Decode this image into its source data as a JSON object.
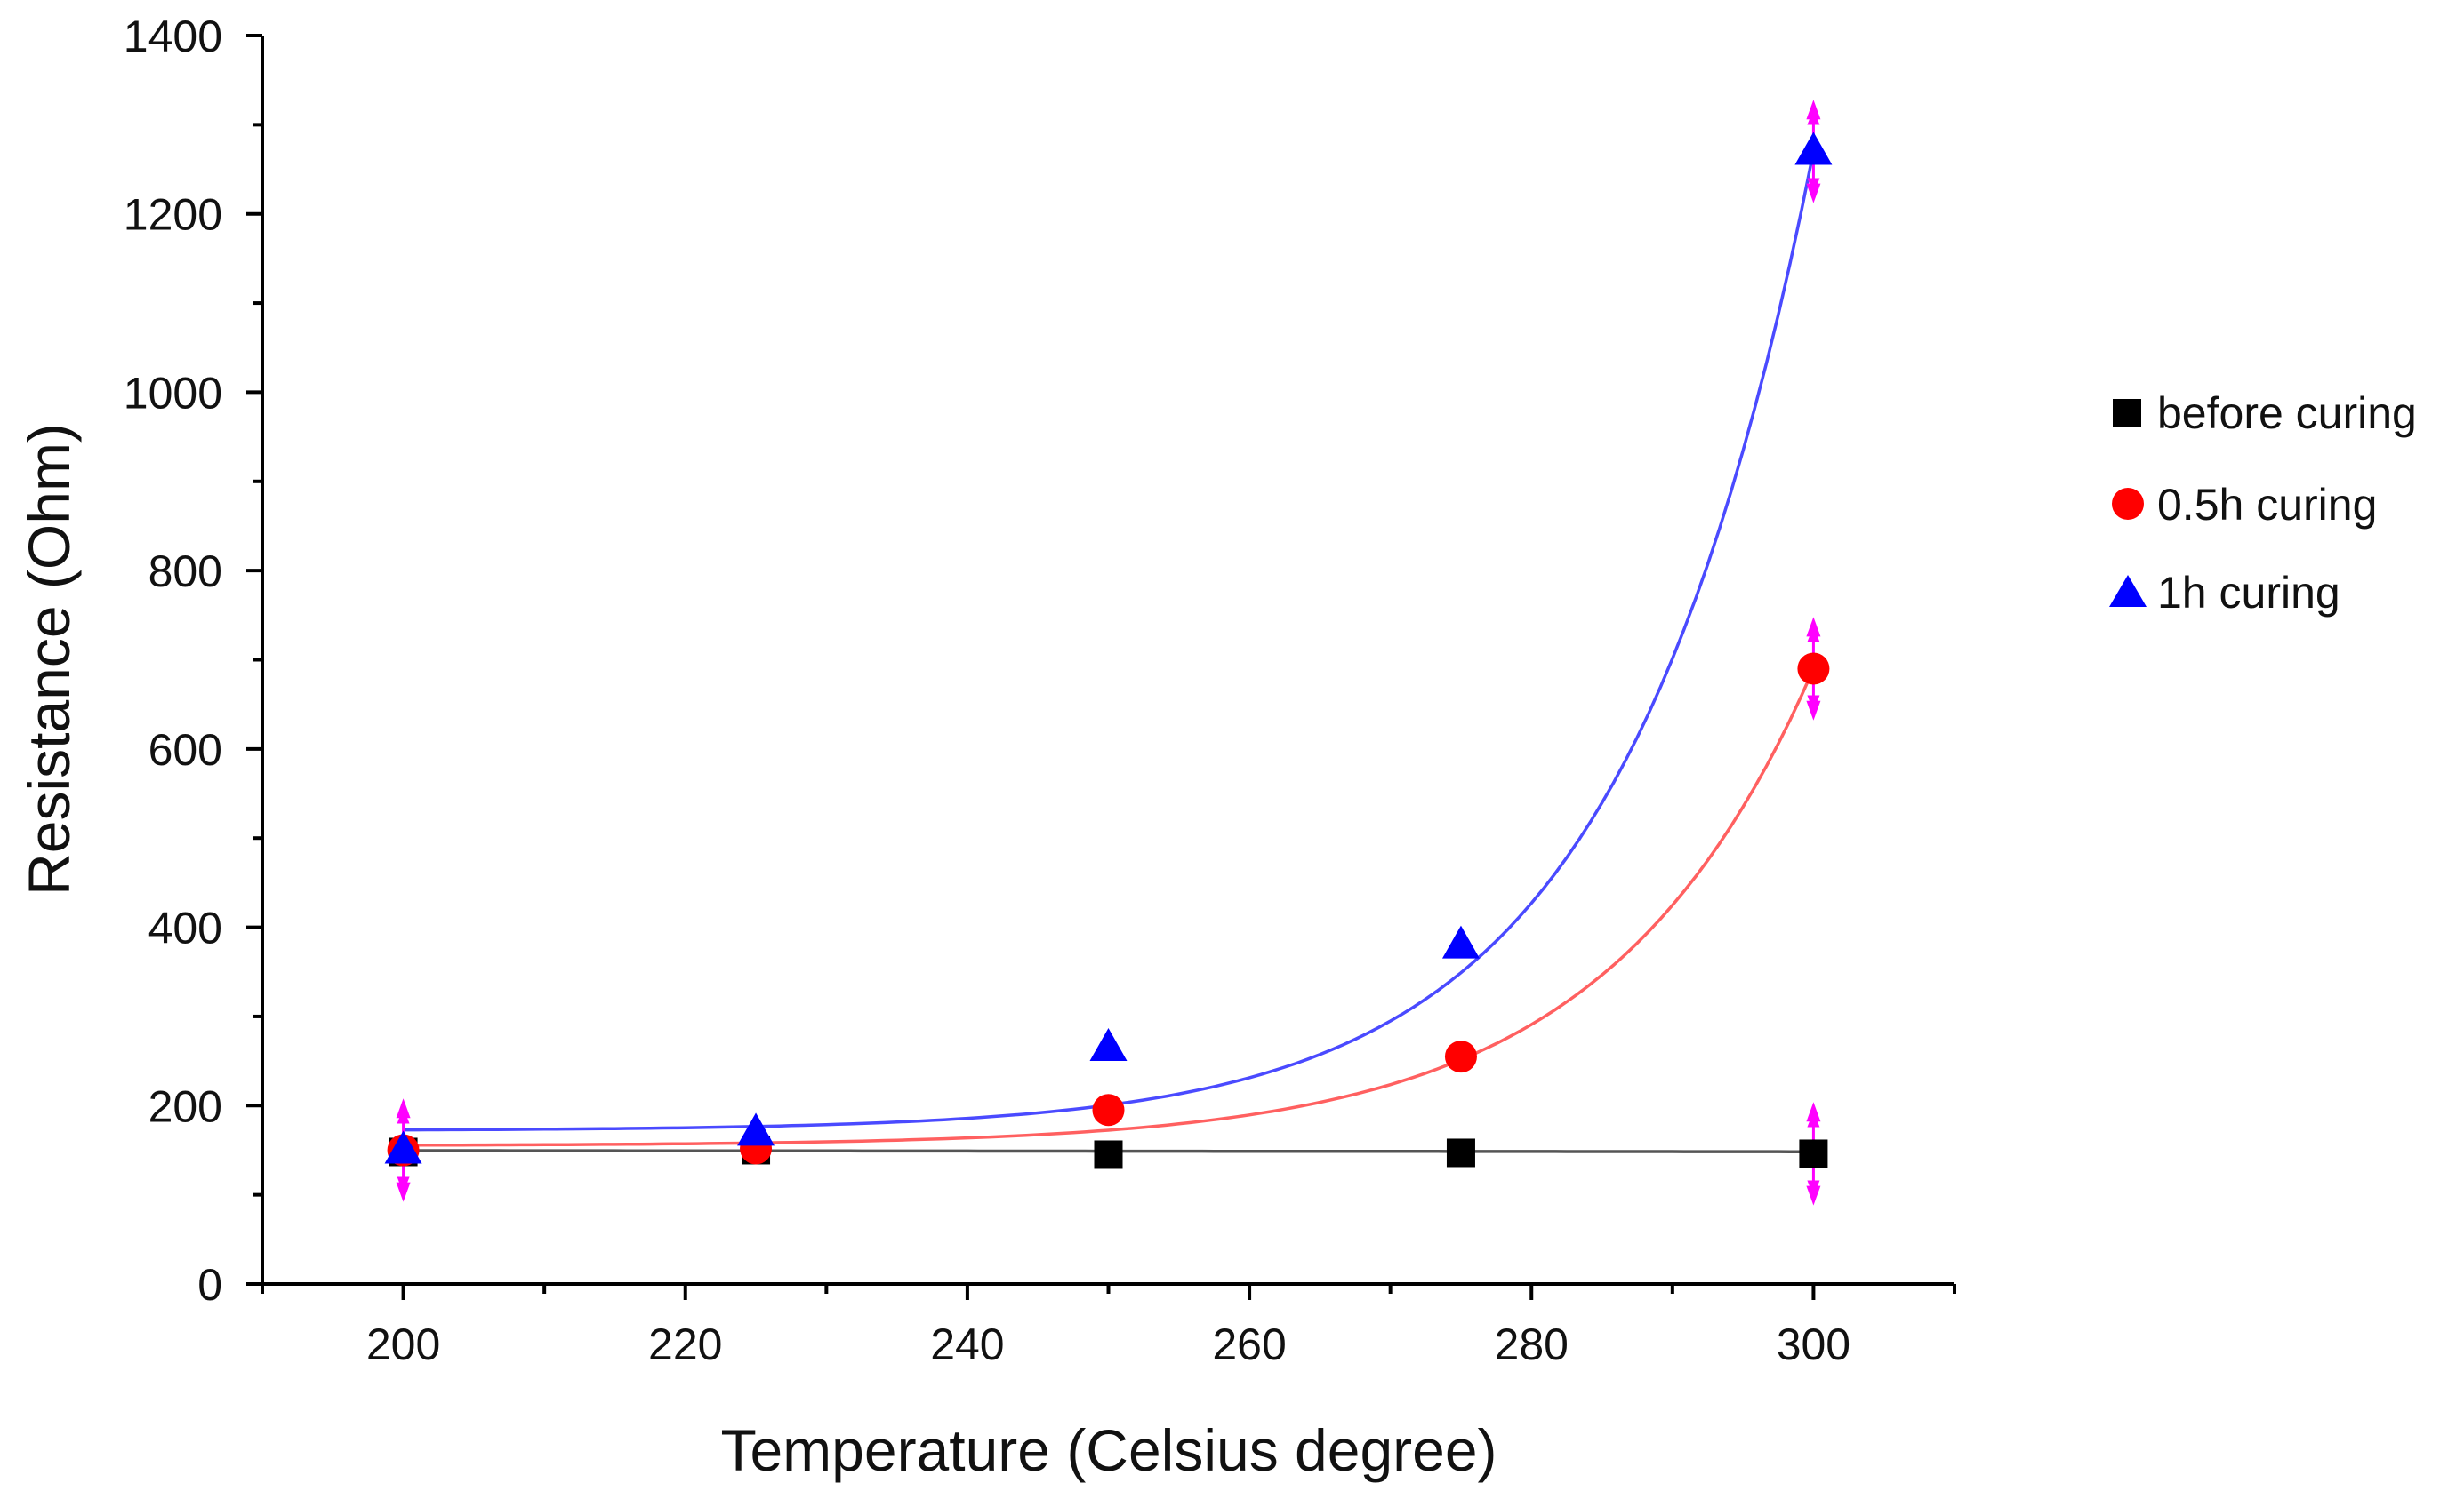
{
  "chart_data": {
    "type": "scatter",
    "title": "",
    "xlabel": "Temperature (Celsius degree)",
    "ylabel": "Resistance (Ohm)",
    "xlim": [
      190,
      310
    ],
    "ylim": [
      0,
      1400
    ],
    "x_ticks": [
      200,
      220,
      240,
      260,
      280,
      300
    ],
    "x_minor_ticks": [
      190,
      210,
      230,
      250,
      270,
      290,
      310
    ],
    "y_ticks": [
      0,
      200,
      400,
      600,
      800,
      1000,
      1200,
      1400
    ],
    "y_minor_ticks": [
      100,
      300,
      500,
      700,
      900,
      1100,
      1300
    ],
    "x_tick_labels": [
      "200",
      "220",
      "240",
      "260",
      "280",
      "300"
    ],
    "y_tick_labels": [
      "0",
      "200",
      "400",
      "600",
      "800",
      "1000",
      "1200",
      "1400"
    ],
    "grid": false,
    "legend_position": "right",
    "x": [
      200,
      225,
      250,
      275,
      300
    ],
    "series": [
      {
        "name": "before curing",
        "marker": "square",
        "color": "#000000",
        "line_color": "#555555",
        "values": [
          148,
          150,
          145,
          147,
          146
        ],
        "fit": {
          "kind": "linear",
          "a": 149.5,
          "b": -0.012
        }
      },
      {
        "name": "0.5h curing",
        "marker": "circle",
        "color": "#ff0000",
        "line_color": "#ff6060",
        "values": [
          150,
          152,
          195,
          255,
          690
        ],
        "fit": {
          "kind": "exponential",
          "base": 155,
          "amp": 535,
          "x0": 300,
          "tau": 14.6
        }
      },
      {
        "name": "1h curing",
        "marker": "triangle",
        "color": "#0000ff",
        "line_color": "#4a4aff",
        "values": [
          150,
          170,
          265,
          380,
          1270
        ],
        "fit": {
          "kind": "exponential",
          "base": 172,
          "amp": 1098,
          "x0": 300,
          "tau": 13.7
        }
      }
    ],
    "error_bars": {
      "color": "#ff00ff",
      "points": [
        {
          "x": 200,
          "y": 150,
          "err": 50
        },
        {
          "x": 300,
          "y": 1270,
          "err": 50
        },
        {
          "x": 300,
          "y": 690,
          "err": 50
        },
        {
          "x": 300,
          "y": 146,
          "err": 50
        }
      ]
    }
  }
}
